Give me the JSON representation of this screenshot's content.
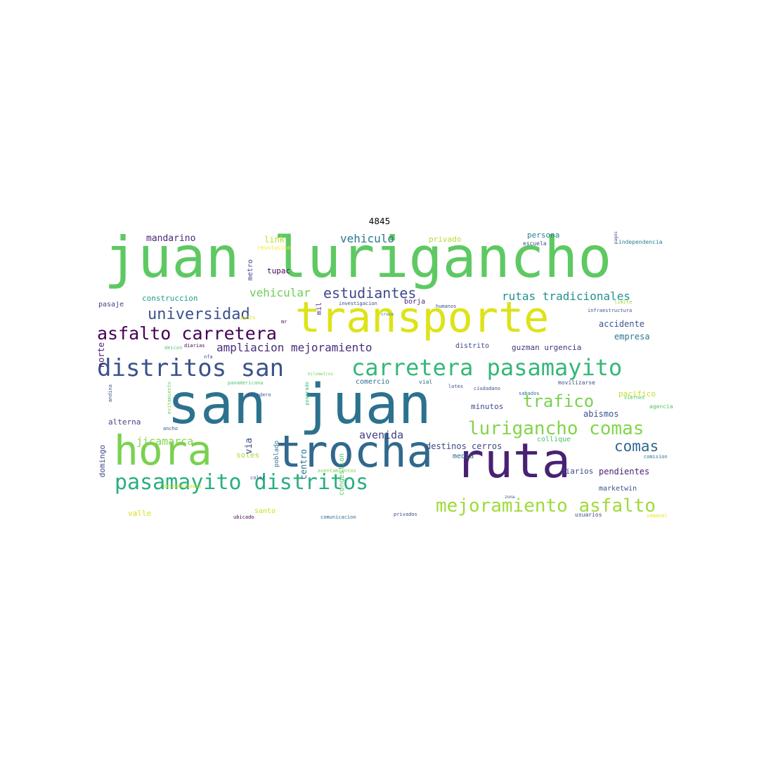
{
  "title": "4845",
  "words": [
    {
      "text": "juan lurigancho",
      "color": "#5ec962"
    },
    {
      "text": "transporte",
      "color": "#dde318"
    },
    {
      "text": "san juan",
      "color": "#2c728e"
    },
    {
      "text": "hora",
      "color": "#7ad151"
    },
    {
      "text": "trocha",
      "color": "#31688e"
    },
    {
      "text": "ruta",
      "color": "#482173"
    },
    {
      "text": "distritos san",
      "color": "#3b528b"
    },
    {
      "text": "carretera pasamayito",
      "color": "#35b779"
    },
    {
      "text": "pasamayito distritos",
      "color": "#29af7f"
    },
    {
      "text": "mejoramiento asfalto",
      "color": "#a0da39"
    },
    {
      "text": "lurigancho comas",
      "color": "#84d44b"
    },
    {
      "text": "asfalto carretera",
      "color": "#440154"
    },
    {
      "text": "universidad",
      "color": "#3b528b"
    },
    {
      "text": "estudiantes",
      "color": "#3e4989"
    },
    {
      "text": "rutas tradicionales",
      "color": "#21918c"
    },
    {
      "text": "trafico",
      "color": "#7ad151"
    },
    {
      "text": "comas",
      "color": "#31688e"
    },
    {
      "text": "ampliacion mejoramiento",
      "color": "#472d7b"
    },
    {
      "text": "vehiculo",
      "color": "#2a788e"
    },
    {
      "text": "vehicular",
      "color": "#6ece58"
    },
    {
      "text": "jicamarca",
      "color": "#86d549"
    },
    {
      "text": "avenida",
      "color": "#433e85"
    },
    {
      "text": "mandarino",
      "color": "#482878"
    },
    {
      "text": "link",
      "color": "#bddf26"
    },
    {
      "text": "tupac",
      "color": "#440154"
    },
    {
      "text": "privado",
      "color": "#b5de2b"
    },
    {
      "text": "persona",
      "color": "#277f8e"
    },
    {
      "text": "construccion",
      "color": "#1f9e89"
    },
    {
      "text": "metro",
      "color": "#3e4989"
    },
    {
      "text": "norte",
      "color": "#482475"
    },
    {
      "text": "pasaje",
      "color": "#414487"
    },
    {
      "text": "mil",
      "color": "#46327e"
    },
    {
      "text": "borja",
      "color": "#482878"
    },
    {
      "text": "accidente",
      "color": "#39568c"
    },
    {
      "text": "empresa",
      "color": "#2a788e"
    },
    {
      "text": "distrito",
      "color": "#3e4989"
    },
    {
      "text": "guzman urgencia",
      "color": "#46327e"
    },
    {
      "text": "alterna",
      "color": "#414487"
    },
    {
      "text": "minutos",
      "color": "#3e4989"
    },
    {
      "text": "abismos",
      "color": "#3b528b"
    },
    {
      "text": "destinos cerros",
      "color": "#404688"
    },
    {
      "text": "soles",
      "color": "#a8db34"
    },
    {
      "text": "media",
      "color": "#2f6c8e"
    },
    {
      "text": "diarios",
      "color": "#3e4989"
    },
    {
      "text": "pendientes",
      "color": "#482475"
    },
    {
      "text": "marketwin",
      "color": "#3b528b"
    },
    {
      "text": "pacifico",
      "color": "#c2df23"
    },
    {
      "text": "collique",
      "color": "#4ac16d"
    },
    {
      "text": "comercio",
      "color": "#2e6e8e"
    },
    {
      "text": "valle",
      "color": "#d8e219"
    },
    {
      "text": "santo",
      "color": "#c5e021"
    },
    {
      "text": "domingo",
      "color": "#3e4989"
    },
    {
      "text": "via",
      "color": "#3e4989"
    },
    {
      "text": "poblado",
      "color": "#2d708e"
    },
    {
      "text": "centro",
      "color": "#2c728e"
    },
    {
      "text": "congestion",
      "color": "#52c569"
    },
    {
      "text": "independencia",
      "color": "#26828e"
    },
    {
      "text": "escuela",
      "color": "#3b528b"
    },
    {
      "text": "revolucion",
      "color": "#fde725"
    },
    {
      "text": "investigacion",
      "color": "#3e4989"
    },
    {
      "text": "humanos",
      "color": "#3b528b"
    },
    {
      "text": "infraestructura",
      "color": "#39568c"
    },
    {
      "text": "limite",
      "color": "#9bd93c"
    },
    {
      "text": "agencia",
      "color": "#52c569"
    },
    {
      "text": "comision",
      "color": "#2d708e"
    },
    {
      "text": "usuarios",
      "color": "#3e4989"
    },
    {
      "text": "semanal",
      "color": "#e7e419"
    },
    {
      "text": "movilizarse",
      "color": "#3b528b"
    },
    {
      "text": "sabados",
      "color": "#2c728e"
    },
    {
      "text": "viernes",
      "color": "#4ac16d"
    },
    {
      "text": "lotes",
      "color": "#3e4989"
    },
    {
      "text": "vial",
      "color": "#2d708e"
    },
    {
      "text": "ciudadano",
      "color": "#3b528b"
    },
    {
      "text": "andina",
      "color": "#3b528b"
    },
    {
      "text": "evitamiento",
      "color": "#6ece58"
    },
    {
      "text": "panamericana",
      "color": "#52c569"
    },
    {
      "text": "kilometros",
      "color": "#7ad151"
    },
    {
      "text": "paradero",
      "color": "#3b528b"
    },
    {
      "text": "nfa",
      "color": "#3b528b"
    },
    {
      "text": "deicon",
      "color": "#52c569"
    },
    {
      "text": "diarias",
      "color": "#440154"
    },
    {
      "text": "mr",
      "color": "#440154"
    },
    {
      "text": "ancho",
      "color": "#3b528b"
    },
    {
      "text": "asentamientos",
      "color": "#7ad151"
    },
    {
      "text": "color",
      "color": "#3e4989"
    },
    {
      "text": "ubicado",
      "color": "#440154"
    },
    {
      "text": "comunicacion",
      "color": "#31688e"
    },
    {
      "text": "desembolsados",
      "color": "#d0e11c"
    },
    {
      "text": "punto",
      "color": "#dde318"
    },
    {
      "text": "posgrado",
      "color": "#35b779"
    },
    {
      "text": "cruce",
      "color": "#2c728e"
    },
    {
      "text": "pagos",
      "color": "#3e4989"
    },
    {
      "text": "privados",
      "color": "#3e4989"
    },
    {
      "text": "zona",
      "color": "#3b528b"
    }
  ]
}
